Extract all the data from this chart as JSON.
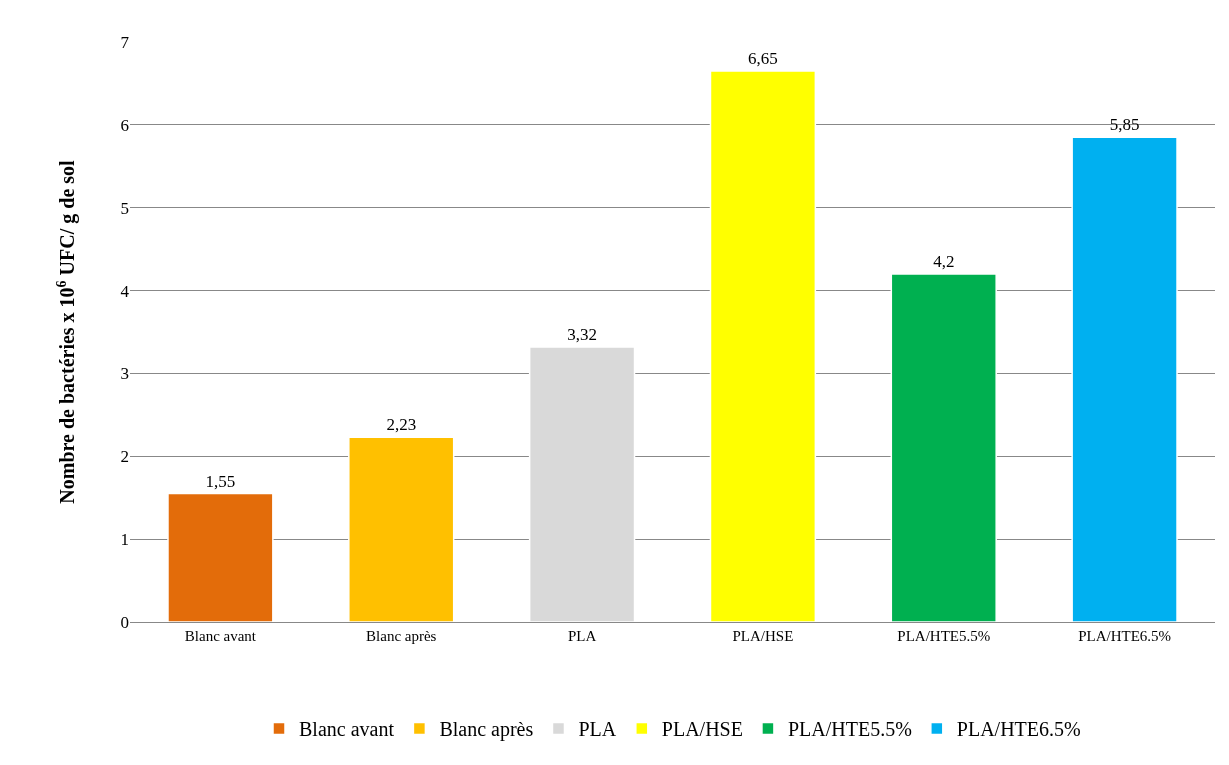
{
  "chart_data": {
    "type": "bar",
    "categories": [
      "Blanc avant",
      "Blanc après",
      "PLA",
      "PLA/HSE",
      "PLA/HTE5.5%",
      "PLA/HTE6.5%"
    ],
    "ylabel": "Nombre de bactéries x 10$^{6}$ UFC/ g de sol",
    "series": [
      {
        "name": "Blanc avant",
        "color": "#e36c0a",
        "values": [
          1.55,
          null,
          null,
          null,
          null,
          null
        ],
        "value_labels": [
          "1,55",
          null,
          null,
          null,
          null,
          null
        ]
      },
      {
        "name": "Blanc après",
        "color": "#ffc000",
        "values": [
          null,
          2.23,
          null,
          null,
          null,
          null
        ],
        "value_labels": [
          null,
          "2,23",
          null,
          null,
          null,
          null
        ]
      },
      {
        "name": "PLA",
        "color": "#d9d9d9",
        "values": [
          null,
          null,
          3.32,
          null,
          null,
          null
        ],
        "value_labels": [
          null,
          null,
          "3,32",
          null,
          null,
          null
        ]
      },
      {
        "name": "PLA/HSE",
        "color": "#ffff00",
        "values": [
          null,
          null,
          null,
          6.65,
          null,
          null
        ],
        "value_labels": [
          null,
          null,
          null,
          "6,65",
          null,
          null
        ]
      },
      {
        "name": "PLA/HTE5.5%",
        "color": "#00b050",
        "values": [
          null,
          null,
          null,
          null,
          4.2,
          null
        ],
        "value_labels": [
          null,
          null,
          null,
          null,
          "4,2",
          null
        ]
      },
      {
        "name": "PLA/HTE6.5%",
        "color": "#00b0f0",
        "values": [
          null,
          null,
          null,
          null,
          null,
          5.85
        ],
        "value_labels": [
          null,
          null,
          null,
          null,
          null,
          "5,85"
        ]
      }
    ],
    "ylim": [
      0,
      7
    ],
    "yticks": [
      0,
      1,
      2,
      3,
      4,
      5,
      6,
      7
    ],
    "grid": "y",
    "legend": "bottom"
  }
}
